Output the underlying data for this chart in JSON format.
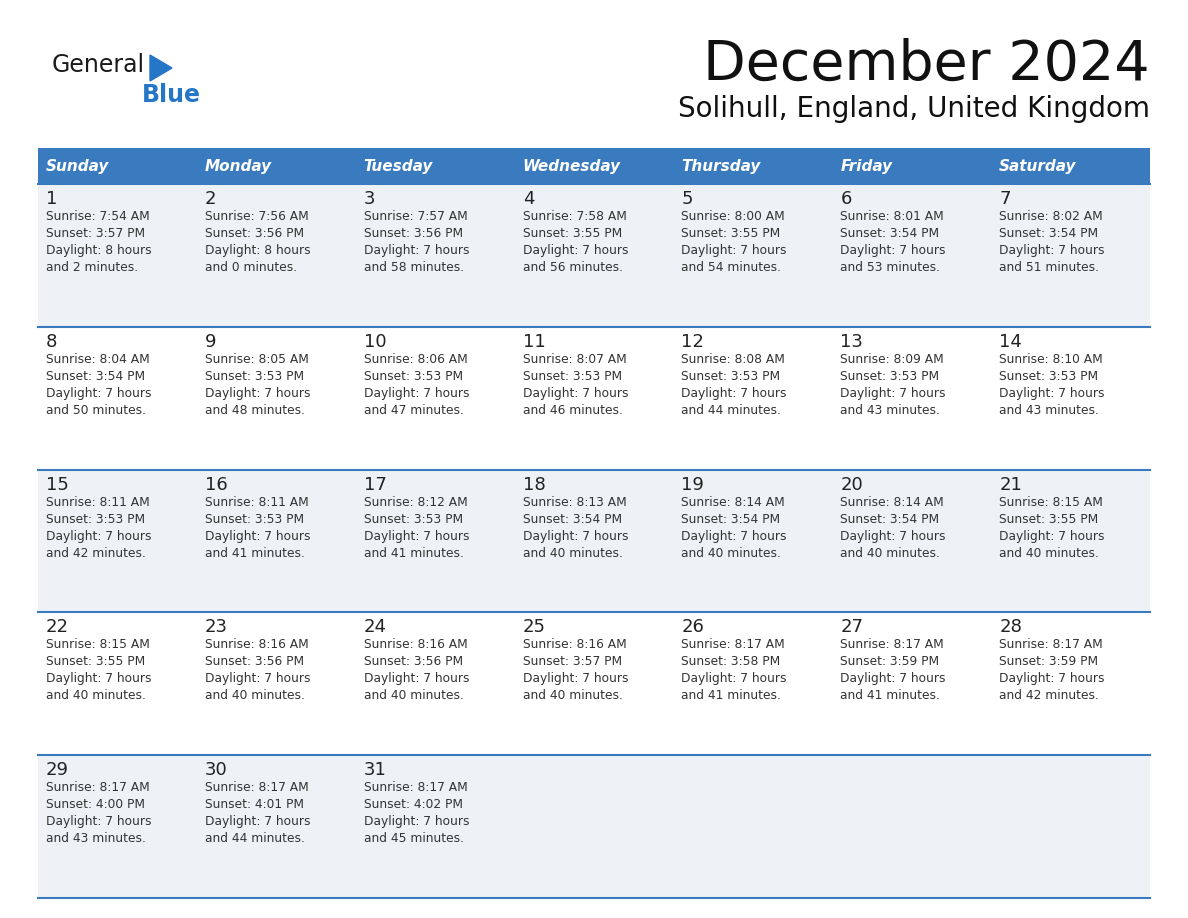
{
  "title": "December 2024",
  "subtitle": "Solihull, England, United Kingdom",
  "days_of_week": [
    "Sunday",
    "Monday",
    "Tuesday",
    "Wednesday",
    "Thursday",
    "Friday",
    "Saturday"
  ],
  "header_bg": "#3a7abf",
  "header_text_color": "#ffffff",
  "row_bg_even": "#eef2f7",
  "row_bg_odd": "#ffffff",
  "separator_color": "#3a7abf",
  "text_color": "#333333",
  "day_number_color": "#222222",
  "calendar_data": [
    [
      {
        "day": 1,
        "sunrise": "7:54 AM",
        "sunset": "3:57 PM",
        "daylight": "8 hours\nand 2 minutes."
      },
      {
        "day": 2,
        "sunrise": "7:56 AM",
        "sunset": "3:56 PM",
        "daylight": "8 hours\nand 0 minutes."
      },
      {
        "day": 3,
        "sunrise": "7:57 AM",
        "sunset": "3:56 PM",
        "daylight": "7 hours\nand 58 minutes."
      },
      {
        "day": 4,
        "sunrise": "7:58 AM",
        "sunset": "3:55 PM",
        "daylight": "7 hours\nand 56 minutes."
      },
      {
        "day": 5,
        "sunrise": "8:00 AM",
        "sunset": "3:55 PM",
        "daylight": "7 hours\nand 54 minutes."
      },
      {
        "day": 6,
        "sunrise": "8:01 AM",
        "sunset": "3:54 PM",
        "daylight": "7 hours\nand 53 minutes."
      },
      {
        "day": 7,
        "sunrise": "8:02 AM",
        "sunset": "3:54 PM",
        "daylight": "7 hours\nand 51 minutes."
      }
    ],
    [
      {
        "day": 8,
        "sunrise": "8:04 AM",
        "sunset": "3:54 PM",
        "daylight": "7 hours\nand 50 minutes."
      },
      {
        "day": 9,
        "sunrise": "8:05 AM",
        "sunset": "3:53 PM",
        "daylight": "7 hours\nand 48 minutes."
      },
      {
        "day": 10,
        "sunrise": "8:06 AM",
        "sunset": "3:53 PM",
        "daylight": "7 hours\nand 47 minutes."
      },
      {
        "day": 11,
        "sunrise": "8:07 AM",
        "sunset": "3:53 PM",
        "daylight": "7 hours\nand 46 minutes."
      },
      {
        "day": 12,
        "sunrise": "8:08 AM",
        "sunset": "3:53 PM",
        "daylight": "7 hours\nand 44 minutes."
      },
      {
        "day": 13,
        "sunrise": "8:09 AM",
        "sunset": "3:53 PM",
        "daylight": "7 hours\nand 43 minutes."
      },
      {
        "day": 14,
        "sunrise": "8:10 AM",
        "sunset": "3:53 PM",
        "daylight": "7 hours\nand 43 minutes."
      }
    ],
    [
      {
        "day": 15,
        "sunrise": "8:11 AM",
        "sunset": "3:53 PM",
        "daylight": "7 hours\nand 42 minutes."
      },
      {
        "day": 16,
        "sunrise": "8:11 AM",
        "sunset": "3:53 PM",
        "daylight": "7 hours\nand 41 minutes."
      },
      {
        "day": 17,
        "sunrise": "8:12 AM",
        "sunset": "3:53 PM",
        "daylight": "7 hours\nand 41 minutes."
      },
      {
        "day": 18,
        "sunrise": "8:13 AM",
        "sunset": "3:54 PM",
        "daylight": "7 hours\nand 40 minutes."
      },
      {
        "day": 19,
        "sunrise": "8:14 AM",
        "sunset": "3:54 PM",
        "daylight": "7 hours\nand 40 minutes."
      },
      {
        "day": 20,
        "sunrise": "8:14 AM",
        "sunset": "3:54 PM",
        "daylight": "7 hours\nand 40 minutes."
      },
      {
        "day": 21,
        "sunrise": "8:15 AM",
        "sunset": "3:55 PM",
        "daylight": "7 hours\nand 40 minutes."
      }
    ],
    [
      {
        "day": 22,
        "sunrise": "8:15 AM",
        "sunset": "3:55 PM",
        "daylight": "7 hours\nand 40 minutes."
      },
      {
        "day": 23,
        "sunrise": "8:16 AM",
        "sunset": "3:56 PM",
        "daylight": "7 hours\nand 40 minutes."
      },
      {
        "day": 24,
        "sunrise": "8:16 AM",
        "sunset": "3:56 PM",
        "daylight": "7 hours\nand 40 minutes."
      },
      {
        "day": 25,
        "sunrise": "8:16 AM",
        "sunset": "3:57 PM",
        "daylight": "7 hours\nand 40 minutes."
      },
      {
        "day": 26,
        "sunrise": "8:17 AM",
        "sunset": "3:58 PM",
        "daylight": "7 hours\nand 41 minutes."
      },
      {
        "day": 27,
        "sunrise": "8:17 AM",
        "sunset": "3:59 PM",
        "daylight": "7 hours\nand 41 minutes."
      },
      {
        "day": 28,
        "sunrise": "8:17 AM",
        "sunset": "3:59 PM",
        "daylight": "7 hours\nand 42 minutes."
      }
    ],
    [
      {
        "day": 29,
        "sunrise": "8:17 AM",
        "sunset": "4:00 PM",
        "daylight": "7 hours\nand 43 minutes."
      },
      {
        "day": 30,
        "sunrise": "8:17 AM",
        "sunset": "4:01 PM",
        "daylight": "7 hours\nand 44 minutes."
      },
      {
        "day": 31,
        "sunrise": "8:17 AM",
        "sunset": "4:02 PM",
        "daylight": "7 hours\nand 45 minutes."
      },
      null,
      null,
      null,
      null
    ]
  ],
  "logo_general_color": "#1a1a1a",
  "logo_blue_color": "#2676c8",
  "logo_triangle_color": "#2676c8"
}
